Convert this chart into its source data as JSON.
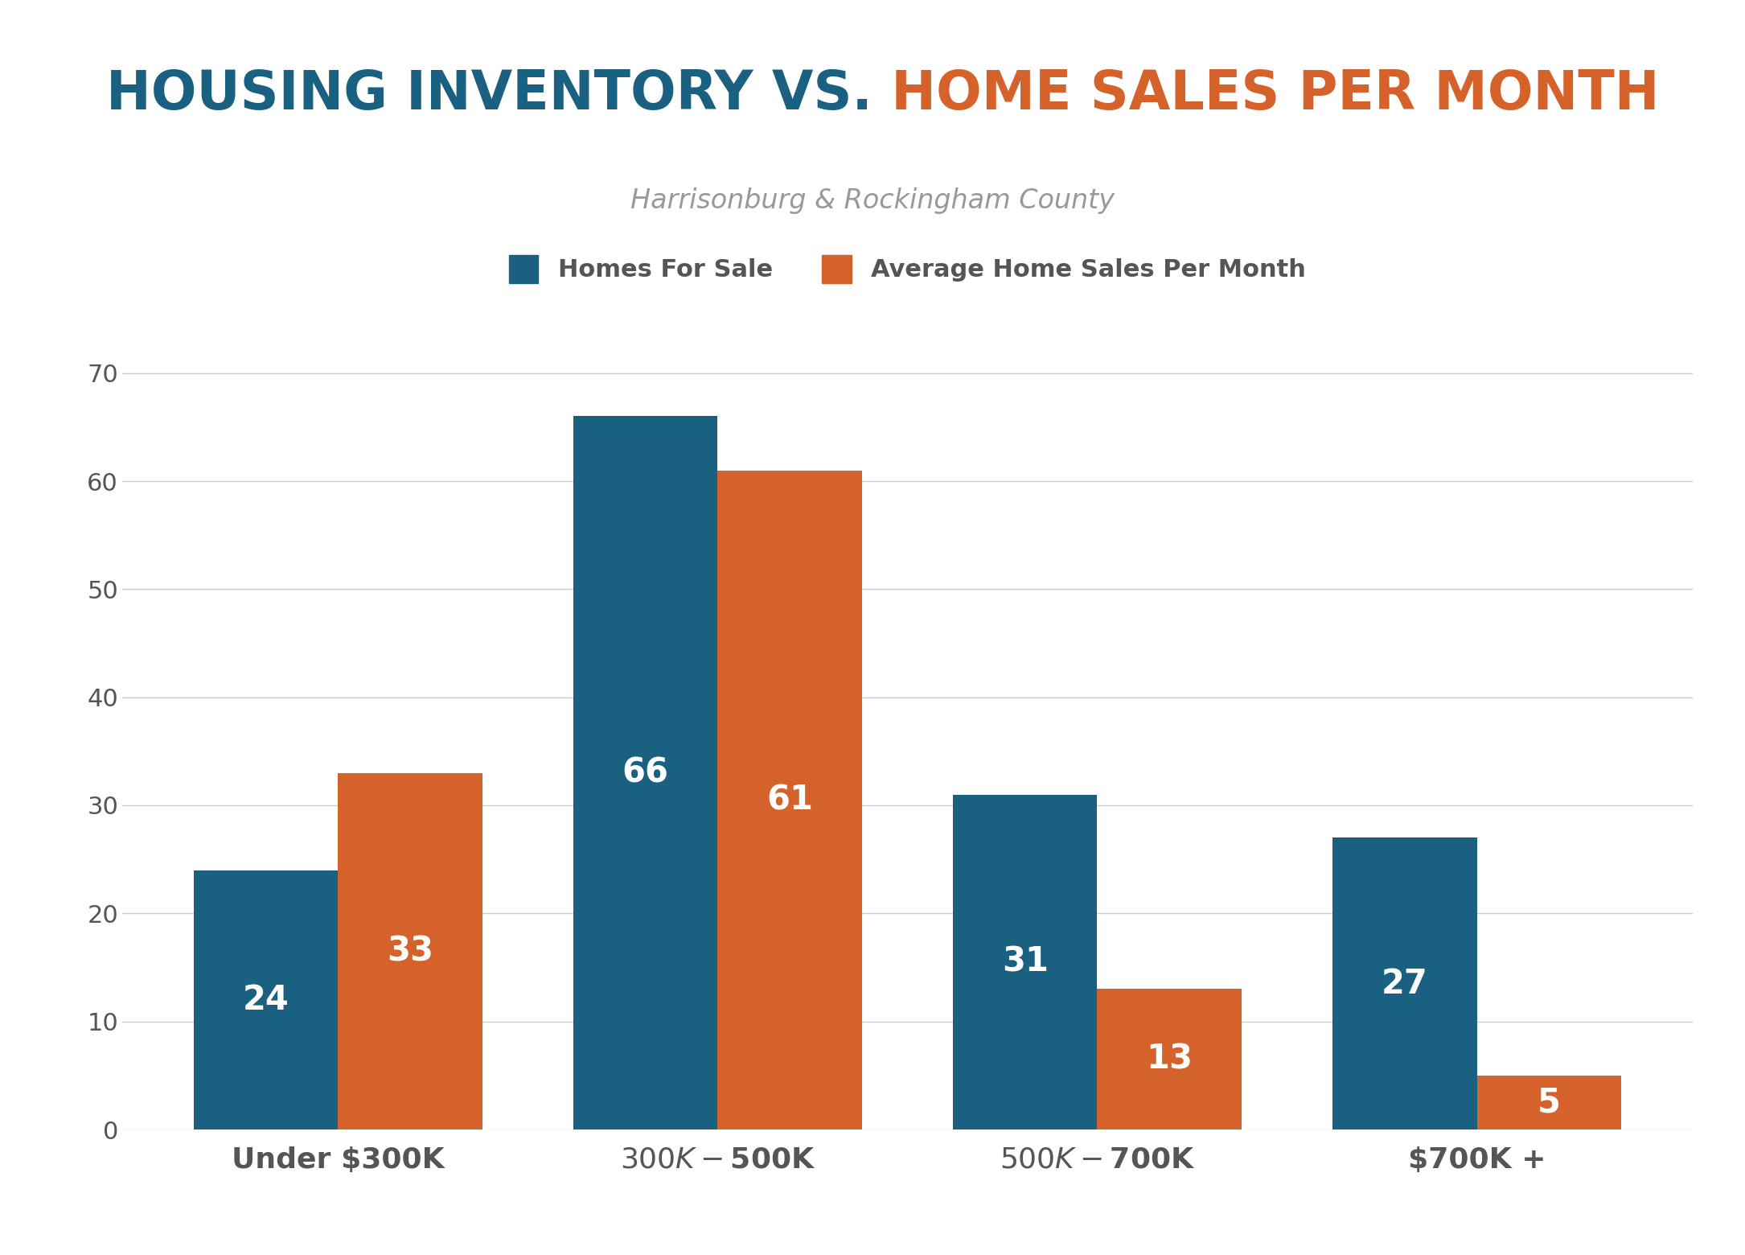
{
  "title_part1": "HOUSING INVENTORY VS.",
  "title_part2": " HOME SALES PER MONTH",
  "subtitle": "Harrisonburg & Rockingham County",
  "legend_label1": "Homes For Sale",
  "legend_label2": "Average Home Sales Per Month",
  "categories": [
    "Under $300K",
    "$300K - $500K",
    "$500K - $700K",
    "$700K +"
  ],
  "series1_values": [
    24,
    66,
    31,
    27
  ],
  "series2_values": [
    33,
    61,
    13,
    5
  ],
  "color1": "#1a6080",
  "color2": "#d4622a",
  "label_color": "#ffffff",
  "title_color1": "#1a6080",
  "title_color2": "#d4622a",
  "subtitle_color": "#999999",
  "tick_color": "#555555",
  "grid_color": "#cccccc",
  "background_color": "#ffffff",
  "ylim": [
    0,
    72
  ],
  "yticks": [
    0,
    10,
    20,
    30,
    40,
    50,
    60,
    70
  ],
  "bar_width": 0.38,
  "title_fontsize": 48,
  "subtitle_fontsize": 24,
  "legend_fontsize": 22,
  "tick_fontsize": 22,
  "bar_label_fontsize": 30,
  "category_fontsize": 26
}
